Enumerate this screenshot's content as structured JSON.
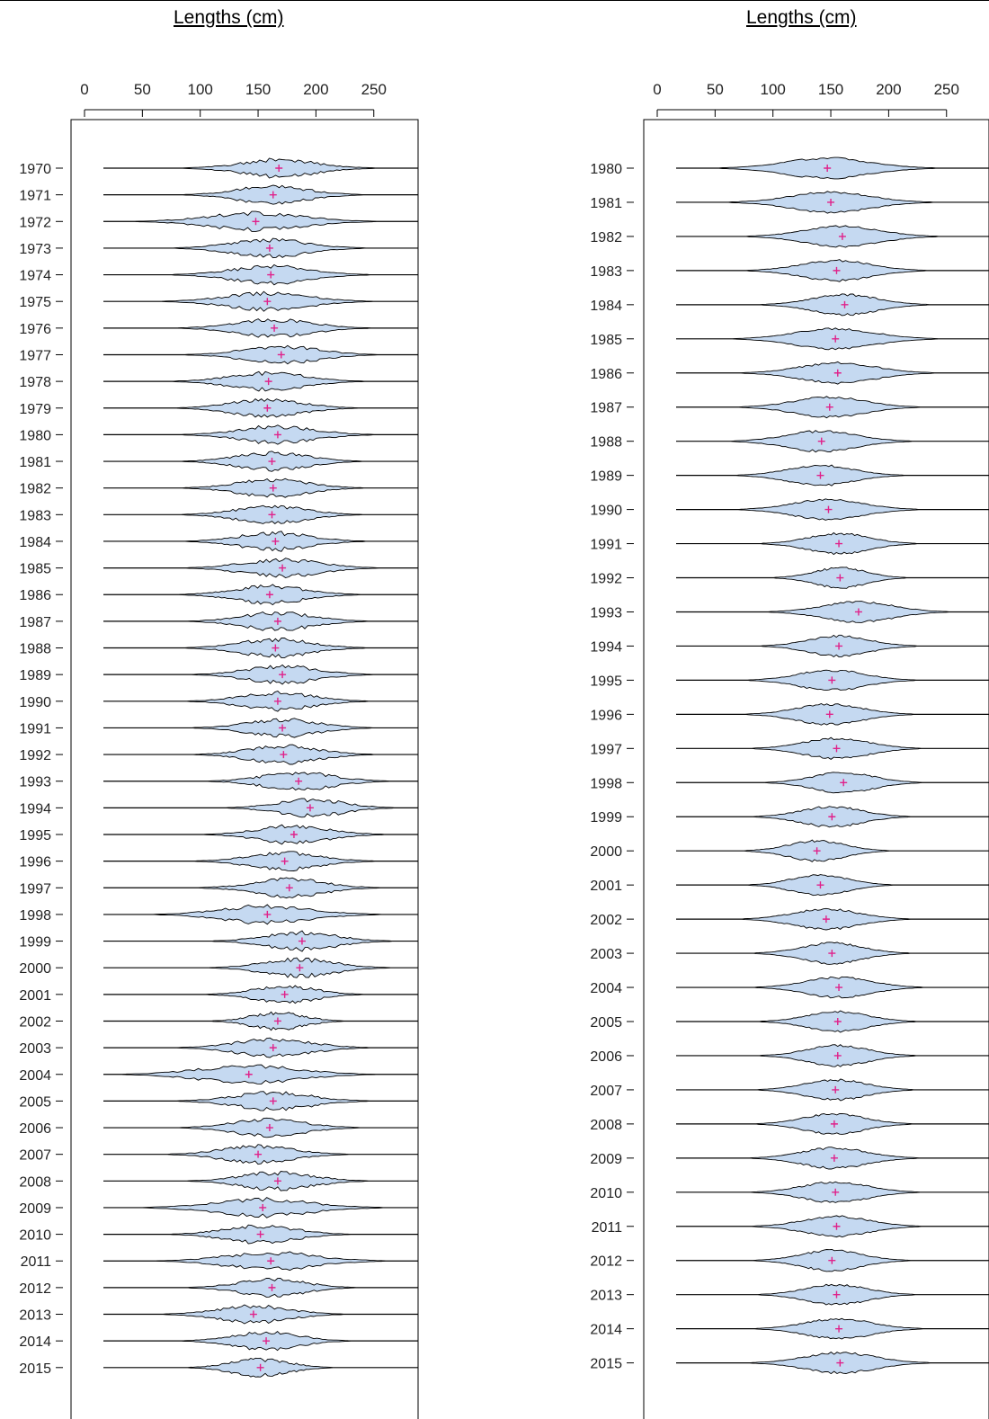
{
  "chart_data": [
    {
      "type": "violin",
      "title": "Lengths (cm)",
      "x_ticks": [
        0,
        50,
        100,
        150,
        200,
        250
      ],
      "xlim": [
        0,
        290
      ],
      "fill_color": "#c5d9f1",
      "outline_color": "#000000",
      "mean_marker_color": "#e0218a",
      "years": [
        "1970",
        "1971",
        "1972",
        "1973",
        "1974",
        "1975",
        "1976",
        "1977",
        "1978",
        "1979",
        "1980",
        "1981",
        "1982",
        "1983",
        "1984",
        "1985",
        "1986",
        "1987",
        "1988",
        "1989",
        "1990",
        "1991",
        "1992",
        "1993",
        "1994",
        "1995",
        "1996",
        "1997",
        "1998",
        "1999",
        "2000",
        "2001",
        "2002",
        "2003",
        "2004",
        "2005",
        "2006",
        "2007",
        "2008",
        "2009",
        "2010",
        "2011",
        "2012",
        "2013",
        "2014",
        "2015"
      ],
      "means": [
        168,
        163,
        148,
        160,
        161,
        158,
        164,
        170,
        159,
        158,
        167,
        162,
        163,
        162,
        165,
        171,
        160,
        167,
        165,
        171,
        167,
        171,
        172,
        185,
        195,
        181,
        173,
        177,
        158,
        188,
        186,
        173,
        167,
        163,
        142,
        163,
        160,
        150,
        167,
        154,
        152,
        161,
        162,
        146,
        157,
        152
      ],
      "spreads": [
        32,
        30,
        40,
        32,
        33,
        35,
        32,
        32,
        32,
        30,
        32,
        30,
        30,
        30,
        30,
        32,
        30,
        30,
        30,
        30,
        30,
        30,
        30,
        30,
        28,
        30,
        30,
        30,
        38,
        30,
        30,
        26,
        22,
        32,
        42,
        32,
        30,
        30,
        30,
        40,
        30,
        38,
        28,
        30,
        28,
        24
      ]
    },
    {
      "type": "violin",
      "title": "Lengths (cm)",
      "x_ticks": [
        0,
        50,
        100,
        150,
        200,
        250
      ],
      "xlim": [
        0,
        290
      ],
      "fill_color": "#c5d9f1",
      "outline_color": "#000000",
      "mean_marker_color": "#e0218a",
      "years": [
        "1980",
        "1981",
        "1982",
        "1983",
        "1984",
        "1985",
        "1986",
        "1987",
        "1988",
        "1989",
        "1990",
        "1991",
        "1992",
        "1993",
        "1994",
        "1995",
        "1996",
        "1997",
        "1998",
        "1999",
        "2000",
        "2001",
        "2002",
        "2003",
        "2004",
        "2005",
        "2006",
        "2007",
        "2008",
        "2009",
        "2010",
        "2011",
        "2012",
        "2013",
        "2014",
        "2015"
      ],
      "means": [
        147,
        150,
        160,
        155,
        162,
        154,
        156,
        149,
        142,
        141,
        148,
        157,
        158,
        174,
        157,
        151,
        149,
        155,
        161,
        151,
        138,
        141,
        146,
        151,
        157,
        156,
        156,
        154,
        153,
        153,
        154,
        155,
        151,
        155,
        157,
        158
      ],
      "spreads": [
        36,
        34,
        32,
        30,
        28,
        34,
        32,
        30,
        30,
        28,
        30,
        26,
        22,
        30,
        26,
        28,
        28,
        28,
        26,
        26,
        24,
        24,
        28,
        26,
        28,
        26,
        26,
        26,
        26,
        28,
        28,
        28,
        26,
        26,
        28,
        30
      ]
    }
  ]
}
